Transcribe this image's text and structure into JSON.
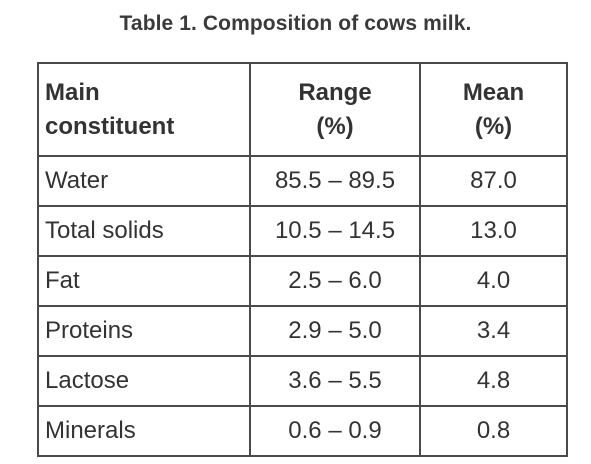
{
  "caption": "Table 1. Composition of cows milk.",
  "table": {
    "headers": {
      "main": [
        "Main",
        "constituent"
      ],
      "range": [
        "Range",
        "(%)"
      ],
      "mean": [
        "Mean",
        "(%)"
      ]
    },
    "rows": [
      {
        "constituent": "Water",
        "range": "85.5 – 89.5",
        "mean": "87.0"
      },
      {
        "constituent": "Total solids",
        "range": "10.5 – 14.5",
        "mean": "13.0"
      },
      {
        "constituent": "Fat",
        "range": "2.5 – 6.0",
        "mean": "4.0"
      },
      {
        "constituent": "Proteins",
        "range": "2.9 – 5.0",
        "mean": "3.4"
      },
      {
        "constituent": "Lactose",
        "range": "3.6 – 5.5",
        "mean": "4.8"
      },
      {
        "constituent": "Minerals",
        "range": "0.6 – 0.9",
        "mean": "0.8"
      }
    ]
  }
}
